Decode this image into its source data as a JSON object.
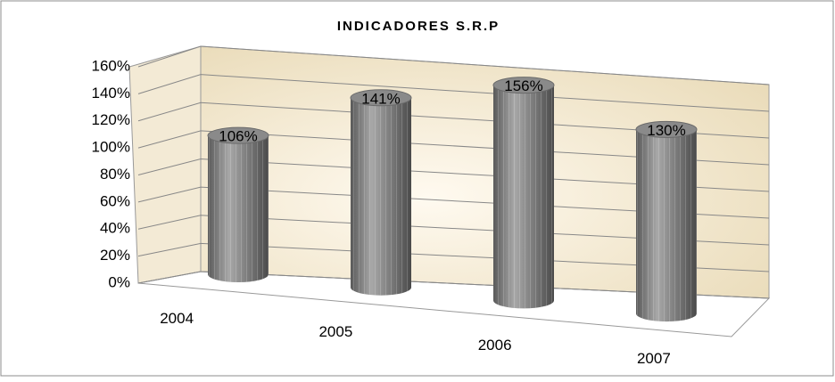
{
  "chart_data": {
    "type": "bar3d",
    "title": "INDICADORES S.R.P",
    "categories": [
      "2004",
      "2005",
      "2006",
      "2007"
    ],
    "values": [
      106,
      141,
      156,
      130
    ],
    "value_labels": [
      "106%",
      "141%",
      "156%",
      "130%"
    ],
    "color": "#808080",
    "ylim": [
      0,
      160
    ],
    "yticks": [
      {
        "value": 0,
        "label": "0%"
      },
      {
        "value": 20,
        "label": "20%"
      },
      {
        "value": 40,
        "label": "40%"
      },
      {
        "value": 60,
        "label": "60%"
      },
      {
        "value": 80,
        "label": "80%"
      },
      {
        "value": 100,
        "label": "100%"
      },
      {
        "value": 120,
        "label": "120%"
      },
      {
        "value": 140,
        "label": "140%"
      },
      {
        "value": 160,
        "label": "160%"
      }
    ],
    "grid": true
  }
}
